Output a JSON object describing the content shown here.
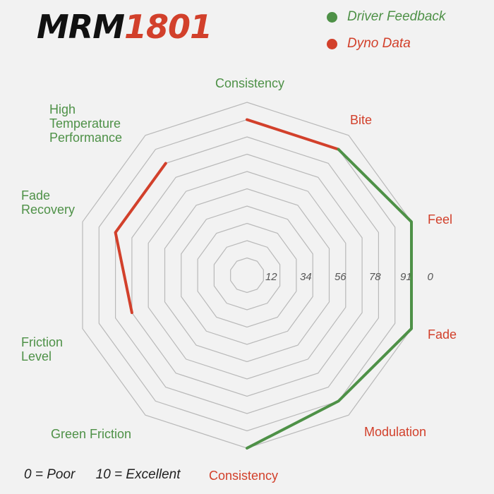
{
  "logo": {
    "part1": "MRM",
    "part2": "1801"
  },
  "colors": {
    "driver_feedback": "#4e9147",
    "dyno_data": "#d2402b",
    "grid": "#b9b9b9"
  },
  "legend": [
    {
      "label": "Driver Feedback",
      "color": "#4e9147"
    },
    {
      "label": "Dyno Data",
      "color": "#d2402b"
    }
  ],
  "scale_note": {
    "poor": "0 = Poor",
    "excellent": "10 = Excellent"
  },
  "chart_data": {
    "type": "radar",
    "ring_labels": [
      "12",
      "34",
      "56",
      "78",
      "91",
      "0"
    ],
    "rlim": [
      0,
      10
    ],
    "axes": [
      {
        "label": "Consistency",
        "group": "driver_feedback"
      },
      {
        "label": "Bite",
        "group": "dyno_data"
      },
      {
        "label": "Feel",
        "group": "dyno_data"
      },
      {
        "label": "Fade",
        "group": "dyno_data"
      },
      {
        "label": "Modulation",
        "group": "dyno_data"
      },
      {
        "label": "Consistency",
        "group": "dyno_data"
      },
      {
        "label": "Green Friction",
        "group": "driver_feedback"
      },
      {
        "label": "Friction\nLevel",
        "group": "driver_feedback"
      },
      {
        "label": "Fade\nRecovery",
        "group": "driver_feedback"
      },
      {
        "label": "High\nTemperature\nPerformance",
        "group": "driver_feedback"
      }
    ],
    "series": [
      {
        "name": "Dyno Data",
        "color": "#d2402b",
        "values": [
          9,
          9,
          null,
          null,
          null,
          10,
          null,
          7,
          8,
          8
        ]
      },
      {
        "name": "Driver Feedback",
        "color": "#4e9147",
        "values": [
          null,
          9,
          10,
          10,
          9,
          10,
          null,
          null,
          null,
          null
        ]
      }
    ]
  }
}
